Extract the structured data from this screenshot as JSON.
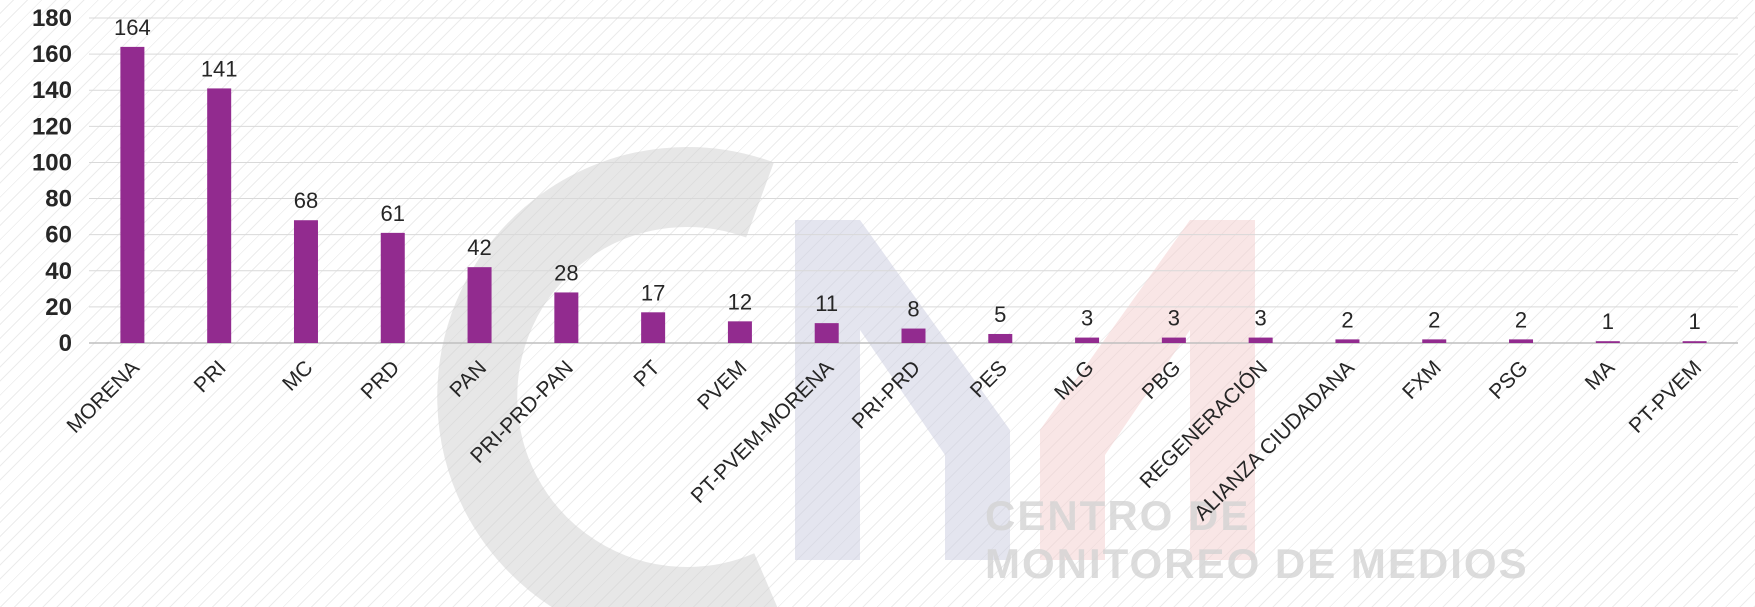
{
  "watermark": {
    "line1": "CENTRO DE",
    "line2": "MONITOREO DE MEDIOS",
    "colors": {
      "gray": "#d4d4d4",
      "blue": "#cdd0e2",
      "red": "#f4d2d2"
    }
  },
  "chart_data": {
    "type": "bar",
    "categories": [
      "MORENA",
      "PRI",
      "MC",
      "PRD",
      "PAN",
      "PRI-PRD-PAN",
      "PT",
      "PVEM",
      "PT-PVEM-MORENA",
      "PRI-PRD",
      "PES",
      "MLG",
      "PBG",
      "REGENERACIÓN",
      "ALIANZA CIUDADANA",
      "FXM",
      "PSG",
      "MA",
      "PT-PVEM"
    ],
    "values": [
      164,
      141,
      68,
      61,
      42,
      28,
      17,
      12,
      11,
      8,
      5,
      3,
      3,
      3,
      2,
      2,
      2,
      1,
      1
    ],
    "data_labels": [
      "164",
      "141",
      "68",
      "61",
      "42",
      "28",
      "17",
      "12",
      "11",
      "8",
      "5",
      "3",
      "3",
      "3",
      "2",
      "2",
      "2",
      "1",
      "1"
    ],
    "yticks": [
      "0",
      "20",
      "40",
      "60",
      "80",
      "100",
      "120",
      "140",
      "160",
      "180"
    ],
    "ylim": [
      0,
      180
    ],
    "grid": true,
    "legend": "none",
    "bar_color": "#922B8F"
  }
}
